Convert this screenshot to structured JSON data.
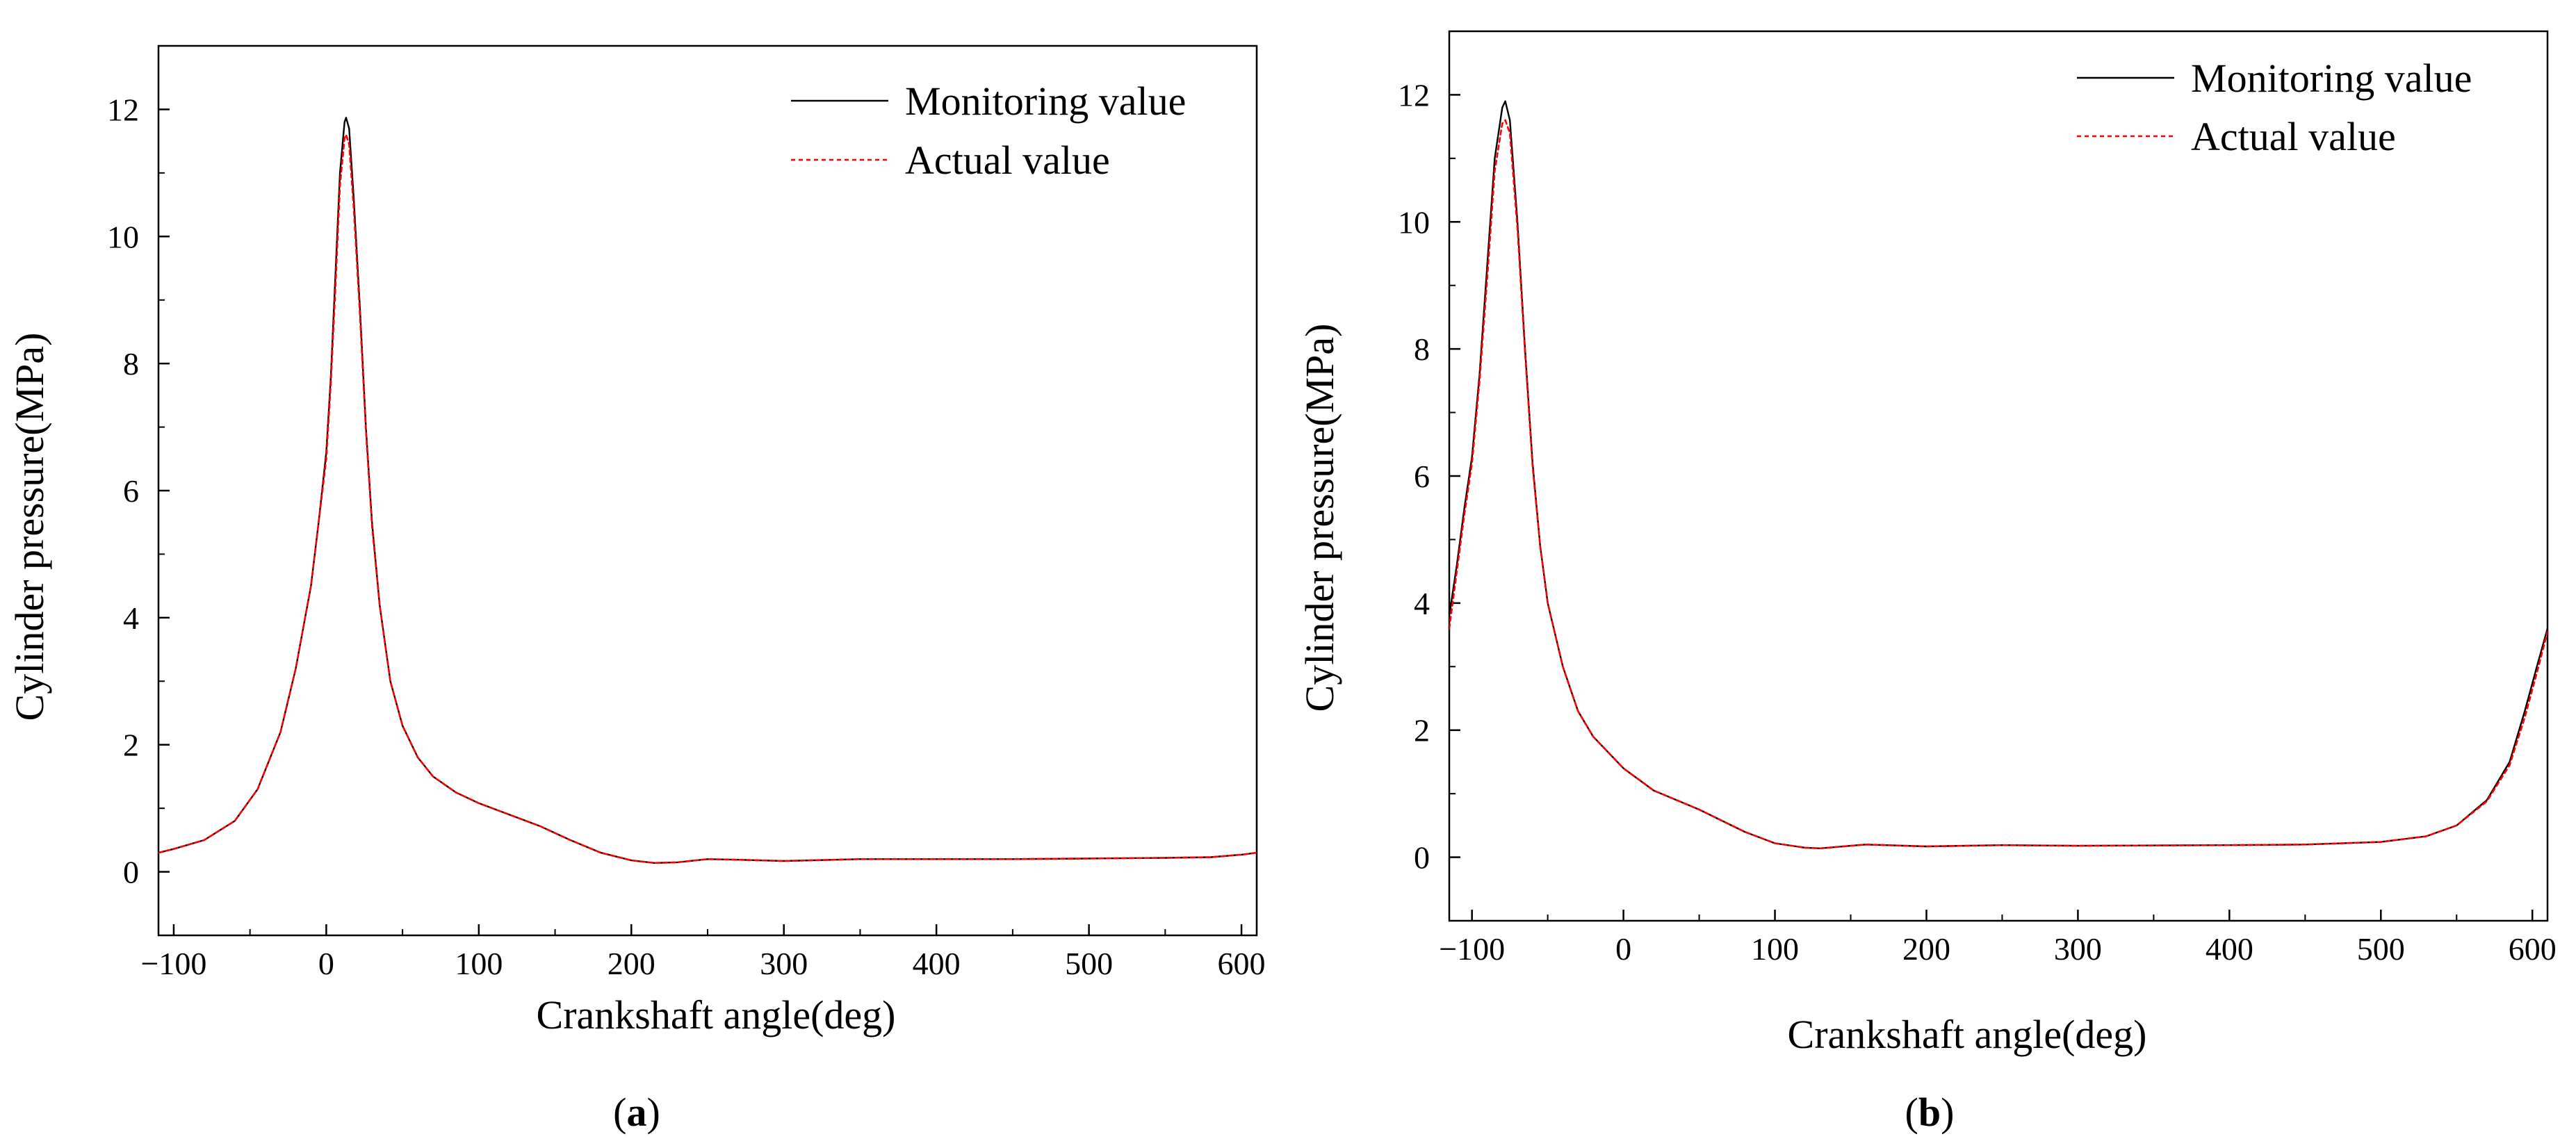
{
  "chart_data": [
    {
      "id": "a",
      "type": "line",
      "caption_open": "(",
      "caption_letter": "a",
      "caption_close": ")",
      "xlabel": "Crankshaft angle(deg)",
      "ylabel": "Cylinder pressure(MPa)",
      "xlim": [
        -110,
        610
      ],
      "ylim": [
        -1,
        13
      ],
      "xticks": [
        -100,
        0,
        100,
        200,
        300,
        400,
        500,
        600
      ],
      "xtick_labels": [
        "−100",
        "0",
        "100",
        "200",
        "300",
        "400",
        "500",
        "600"
      ],
      "yticks": [
        0,
        2,
        4,
        6,
        8,
        10,
        12
      ],
      "ytick_labels": [
        "0",
        "2",
        "4",
        "6",
        "8",
        "10",
        "12"
      ],
      "legend_position": "top-right",
      "series": [
        {
          "name": "Monitoring value",
          "color": "#000000",
          "style": "solid",
          "points": [
            [
              -110,
              0.3
            ],
            [
              -100,
              0.36
            ],
            [
              -80,
              0.5
            ],
            [
              -60,
              0.8
            ],
            [
              -45,
              1.3
            ],
            [
              -30,
              2.2
            ],
            [
              -20,
              3.2
            ],
            [
              -10,
              4.5
            ],
            [
              -5,
              5.5
            ],
            [
              0,
              6.6
            ],
            [
              3,
              7.8
            ],
            [
              6,
              9.4
            ],
            [
              9,
              11.0
            ],
            [
              12,
              11.8
            ],
            [
              13,
              11.87
            ],
            [
              15,
              11.7
            ],
            [
              18,
              10.6
            ],
            [
              22,
              8.9
            ],
            [
              26,
              7.0
            ],
            [
              30,
              5.5
            ],
            [
              35,
              4.2
            ],
            [
              42,
              3.0
            ],
            [
              50,
              2.3
            ],
            [
              60,
              1.8
            ],
            [
              70,
              1.5
            ],
            [
              85,
              1.25
            ],
            [
              100,
              1.08
            ],
            [
              120,
              0.9
            ],
            [
              140,
              0.72
            ],
            [
              160,
              0.5
            ],
            [
              180,
              0.3
            ],
            [
              200,
              0.18
            ],
            [
              215,
              0.14
            ],
            [
              230,
              0.15
            ],
            [
              250,
              0.2
            ],
            [
              270,
              0.19
            ],
            [
              300,
              0.17
            ],
            [
              350,
              0.2
            ],
            [
              400,
              0.2
            ],
            [
              450,
              0.2
            ],
            [
              500,
              0.21
            ],
            [
              550,
              0.22
            ],
            [
              580,
              0.23
            ],
            [
              600,
              0.27
            ],
            [
              610,
              0.3
            ]
          ]
        },
        {
          "name": "Actual value",
          "color": "#ff0000",
          "style": "dashed",
          "points": [
            [
              -110,
              0.3
            ],
            [
              -100,
              0.36
            ],
            [
              -80,
              0.5
            ],
            [
              -60,
              0.8
            ],
            [
              -45,
              1.3
            ],
            [
              -30,
              2.2
            ],
            [
              -20,
              3.2
            ],
            [
              -10,
              4.5
            ],
            [
              -5,
              5.5
            ],
            [
              0,
              6.5
            ],
            [
              3,
              7.7
            ],
            [
              6,
              9.2
            ],
            [
              9,
              10.8
            ],
            [
              12,
              11.55
            ],
            [
              13,
              11.6
            ],
            [
              15,
              11.45
            ],
            [
              18,
              10.45
            ],
            [
              22,
              8.8
            ],
            [
              26,
              6.95
            ],
            [
              30,
              5.45
            ],
            [
              35,
              4.2
            ],
            [
              42,
              3.0
            ],
            [
              50,
              2.3
            ],
            [
              60,
              1.8
            ],
            [
              70,
              1.5
            ],
            [
              85,
              1.25
            ],
            [
              100,
              1.08
            ],
            [
              120,
              0.9
            ],
            [
              140,
              0.72
            ],
            [
              160,
              0.5
            ],
            [
              180,
              0.3
            ],
            [
              200,
              0.18
            ],
            [
              215,
              0.14
            ],
            [
              230,
              0.15
            ],
            [
              250,
              0.2
            ],
            [
              270,
              0.19
            ],
            [
              300,
              0.17
            ],
            [
              350,
              0.2
            ],
            [
              400,
              0.2
            ],
            [
              450,
              0.2
            ],
            [
              500,
              0.21
            ],
            [
              550,
              0.22
            ],
            [
              580,
              0.23
            ],
            [
              600,
              0.27
            ],
            [
              610,
              0.3
            ]
          ]
        }
      ]
    },
    {
      "id": "b",
      "type": "line",
      "caption_open": "(",
      "caption_letter": "b",
      "caption_close": ")",
      "xlabel": "Crankshaft angle(deg)",
      "ylabel": "Cylinder pressure(MPa)",
      "xlim": [
        -115,
        610
      ],
      "ylim": [
        -1,
        13
      ],
      "xticks": [
        -100,
        0,
        100,
        200,
        300,
        400,
        500,
        600
      ],
      "xtick_labels": [
        "−100",
        "0",
        "100",
        "200",
        "300",
        "400",
        "500",
        "600"
      ],
      "yticks": [
        0,
        2,
        4,
        6,
        8,
        10,
        12
      ],
      "ytick_labels": [
        "0",
        "2",
        "4",
        "6",
        "8",
        "10",
        "12"
      ],
      "legend_position": "top-right",
      "series": [
        {
          "name": "Monitoring value",
          "color": "#000000",
          "style": "solid",
          "points": [
            [
              -115,
              3.8
            ],
            [
              -110,
              4.6
            ],
            [
              -105,
              5.5
            ],
            [
              -100,
              6.3
            ],
            [
              -95,
              7.6
            ],
            [
              -90,
              9.3
            ],
            [
              -85,
              11.0
            ],
            [
              -80,
              11.8
            ],
            [
              -78,
              11.9
            ],
            [
              -75,
              11.6
            ],
            [
              -70,
              10.0
            ],
            [
              -65,
              8.0
            ],
            [
              -60,
              6.2
            ],
            [
              -55,
              4.9
            ],
            [
              -50,
              4.0
            ],
            [
              -40,
              3.0
            ],
            [
              -30,
              2.3
            ],
            [
              -20,
              1.9
            ],
            [
              0,
              1.4
            ],
            [
              20,
              1.05
            ],
            [
              50,
              0.75
            ],
            [
              80,
              0.4
            ],
            [
              100,
              0.22
            ],
            [
              120,
              0.15
            ],
            [
              130,
              0.14
            ],
            [
              150,
              0.18
            ],
            [
              160,
              0.2
            ],
            [
              200,
              0.17
            ],
            [
              250,
              0.19
            ],
            [
              300,
              0.18
            ],
            [
              400,
              0.19
            ],
            [
              450,
              0.2
            ],
            [
              500,
              0.24
            ],
            [
              530,
              0.33
            ],
            [
              550,
              0.5
            ],
            [
              570,
              0.9
            ],
            [
              585,
              1.5
            ],
            [
              595,
              2.3
            ],
            [
              603,
              3.0
            ],
            [
              610,
              3.6
            ]
          ]
        },
        {
          "name": "Actual value",
          "color": "#ff0000",
          "style": "dashed",
          "points": [
            [
              -115,
              3.6
            ],
            [
              -110,
              4.5
            ],
            [
              -105,
              5.4
            ],
            [
              -100,
              6.2
            ],
            [
              -95,
              7.5
            ],
            [
              -90,
              9.1
            ],
            [
              -85,
              10.8
            ],
            [
              -80,
              11.55
            ],
            [
              -78,
              11.6
            ],
            [
              -75,
              11.4
            ],
            [
              -70,
              9.9
            ],
            [
              -65,
              7.95
            ],
            [
              -60,
              6.15
            ],
            [
              -55,
              4.9
            ],
            [
              -50,
              4.0
            ],
            [
              -40,
              3.0
            ],
            [
              -30,
              2.3
            ],
            [
              -20,
              1.9
            ],
            [
              0,
              1.4
            ],
            [
              20,
              1.05
            ],
            [
              50,
              0.75
            ],
            [
              80,
              0.4
            ],
            [
              100,
              0.22
            ],
            [
              120,
              0.15
            ],
            [
              130,
              0.14
            ],
            [
              150,
              0.18
            ],
            [
              160,
              0.2
            ],
            [
              200,
              0.17
            ],
            [
              250,
              0.19
            ],
            [
              300,
              0.18
            ],
            [
              400,
              0.19
            ],
            [
              450,
              0.2
            ],
            [
              500,
              0.24
            ],
            [
              530,
              0.33
            ],
            [
              550,
              0.5
            ],
            [
              570,
              0.88
            ],
            [
              585,
              1.45
            ],
            [
              595,
              2.2
            ],
            [
              603,
              2.9
            ],
            [
              610,
              3.55
            ]
          ]
        }
      ]
    }
  ]
}
